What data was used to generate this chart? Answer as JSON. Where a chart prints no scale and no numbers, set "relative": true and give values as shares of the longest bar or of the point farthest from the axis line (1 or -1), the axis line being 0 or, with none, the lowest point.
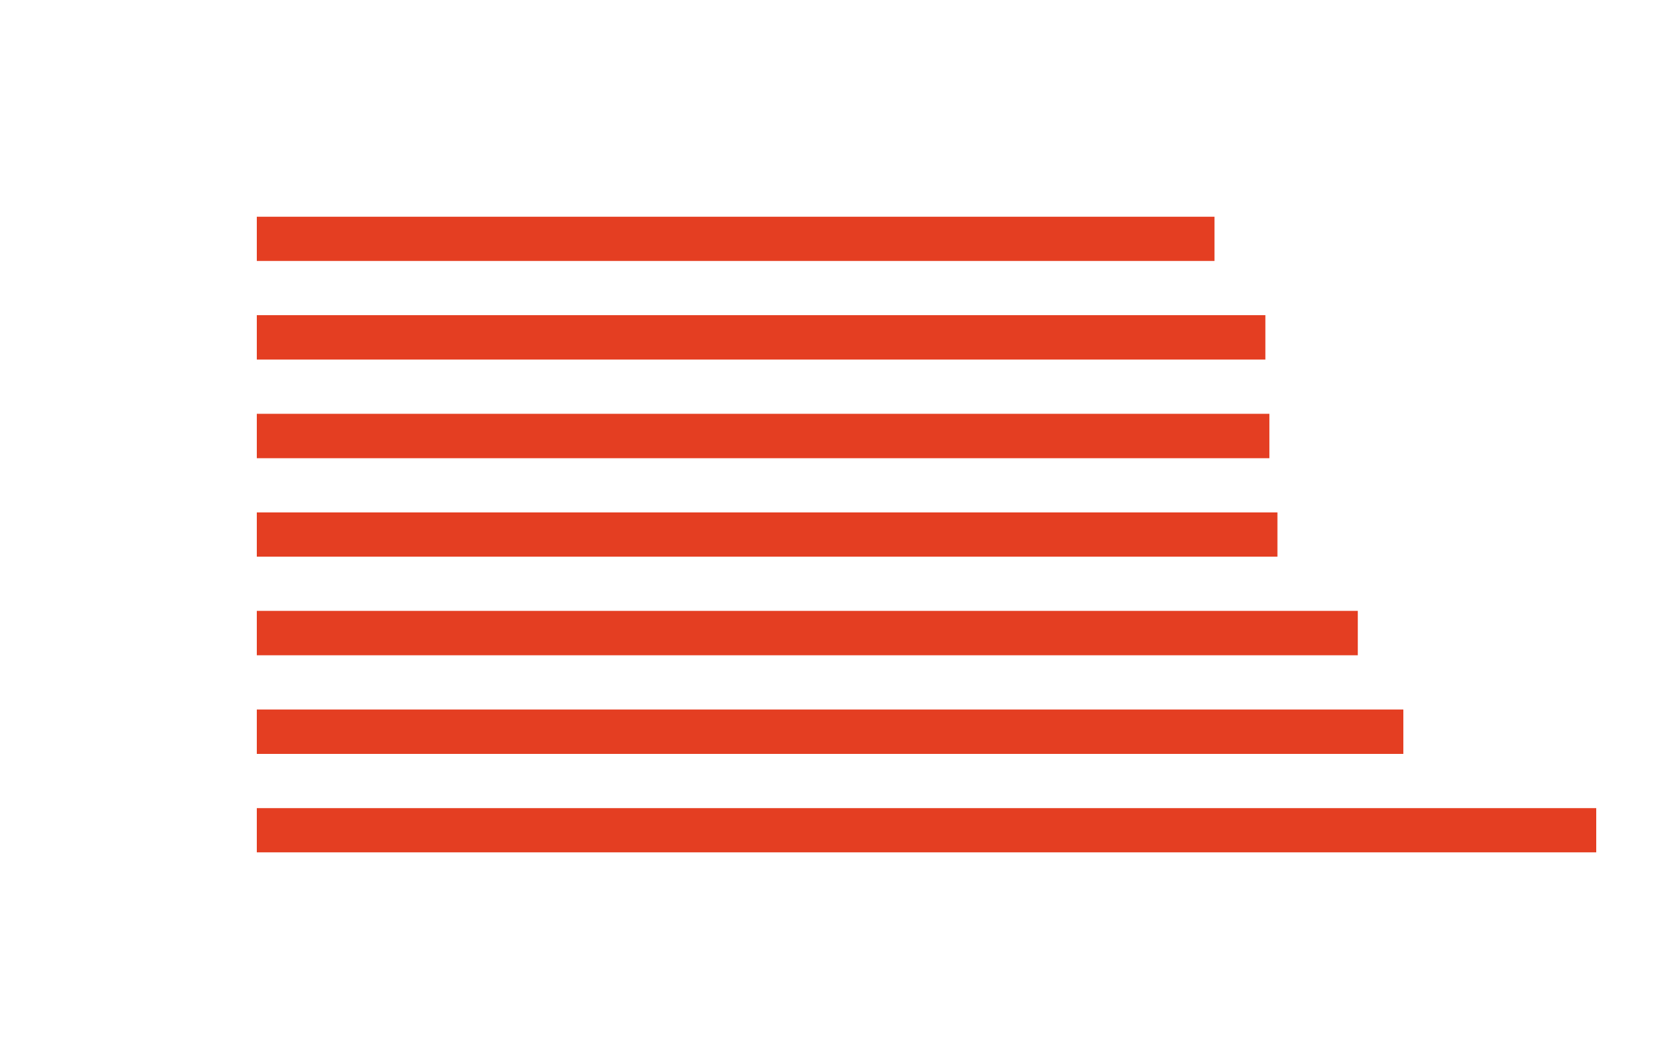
{
  "chart_data": {
    "type": "bar",
    "orientation": "horizontal",
    "relative": true,
    "categories": [
      null,
      null,
      null,
      null,
      null,
      null,
      null
    ],
    "values": [
      0.715,
      0.753,
      0.756,
      0.762,
      0.822,
      0.856,
      1
    ],
    "color": "#e43e22"
  }
}
